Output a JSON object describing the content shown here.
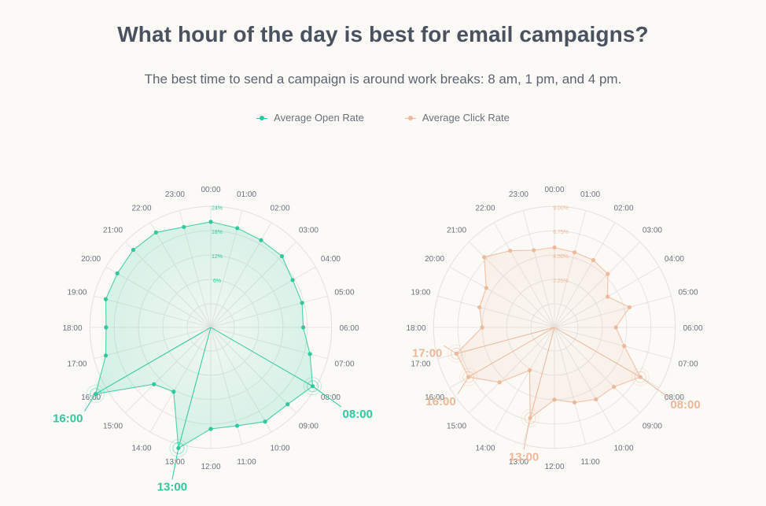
{
  "title": "What hour of the day is best for email campaigns?",
  "subtitle": "The best time to send a campaign is around work breaks: 8 am, 1 pm, and 4 pm.",
  "legend": {
    "open_rate": "Average Open Rate",
    "click_rate": "Average Click Rate"
  },
  "colors": {
    "open_rate": "#2ec99e",
    "click_rate": "#ecb99a",
    "grid": "#e6e4df",
    "hour_label": "#6a717c"
  },
  "chart_data": [
    {
      "type": "radar",
      "series": [
        {
          "name": "Average Open Rate",
          "values": [
            20.2,
            19.5,
            19.0,
            19.0,
            17.5,
            17.5,
            17.0,
            19.5,
            23.2,
            21.0,
            21.0,
            19.3,
            19.2,
            25.0,
            12.5,
            14.0,
            27.0,
            21.0,
            20.0,
            21.0,
            20.8,
            21.2,
            21.2,
            19.8
          ]
        }
      ],
      "categories": [
        "00:00",
        "01:00",
        "02:00",
        "03:00",
        "04:00",
        "05:00",
        "06:00",
        "07:00",
        "08:00",
        "09:00",
        "10:00",
        "11:00",
        "12:00",
        "13:00",
        "14:00",
        "15:00",
        "16:00",
        "17:00",
        "18:00",
        "19:00",
        "20:00",
        "21:00",
        "22:00",
        "23:00"
      ],
      "rlim": [
        0,
        24
      ],
      "radial_ticks": [
        "6%",
        "12%",
        "18%",
        "24%"
      ],
      "highlights": [
        "08:00",
        "13:00",
        "16:00"
      ]
    },
    {
      "type": "radar",
      "series": [
        {
          "name": "Average Click Rate",
          "values": [
            5.2,
            5.0,
            5.0,
            4.8,
            3.5,
            5.0,
            3.5,
            4.5,
            7.0,
            5.6,
            5.5,
            5.0,
            4.5,
            6.5,
            2.4,
            5.0,
            7.0,
            7.2,
            4.5,
            5.0,
            5.1,
            7.0,
            6.0,
            5.2
          ]
        }
      ],
      "categories": [
        "00:00",
        "01:00",
        "02:00",
        "03:00",
        "04:00",
        "05:00",
        "06:00",
        "07:00",
        "08:00",
        "09:00",
        "10:00",
        "11:00",
        "12:00",
        "13:00",
        "14:00",
        "15:00",
        "16:00",
        "17:00",
        "18:00",
        "19:00",
        "20:00",
        "21:00",
        "22:00",
        "23:00"
      ],
      "rlim": [
        0,
        9
      ],
      "radial_ticks": [
        "2.25%",
        "4.50%",
        "6.75%",
        "9.00%"
      ],
      "highlights": [
        "08:00",
        "13:00",
        "16:00",
        "17:00"
      ]
    }
  ]
}
